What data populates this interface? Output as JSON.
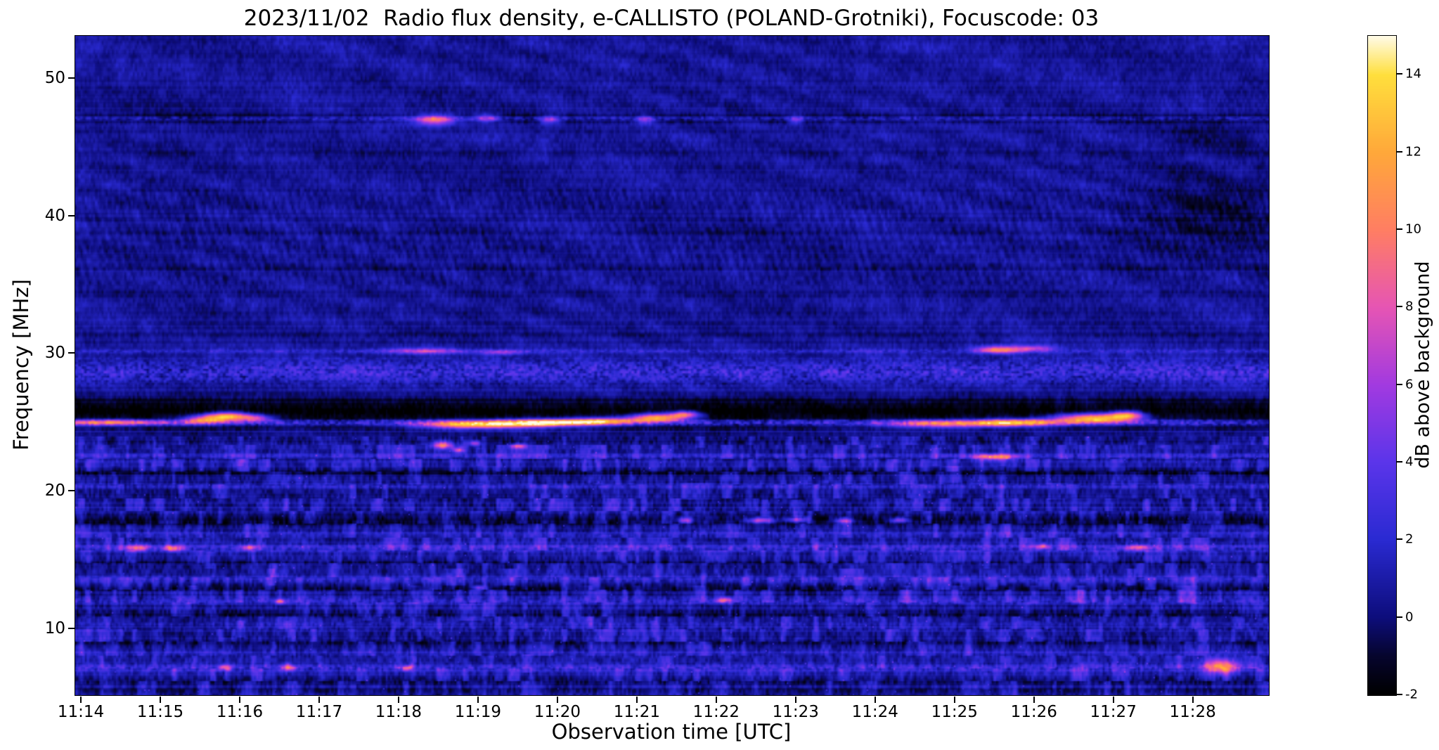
{
  "chart_data": {
    "type": "heatmap",
    "title": "2023/11/02  Radio flux density, e-CALLISTO (POLAND-Grotniki), Focuscode: 03",
    "xlabel": "Observation time [UTC]",
    "ylabel": "Frequency [MHz]",
    "x_ticks": [
      "11:14",
      "11:15",
      "11:16",
      "11:17",
      "11:18",
      "11:19",
      "11:20",
      "11:21",
      "11:22",
      "11:23",
      "11:24",
      "11:25",
      "11:26",
      "11:27",
      "11:28"
    ],
    "x_tick_values_min": [
      0,
      1,
      2,
      3,
      4,
      5,
      6,
      7,
      8,
      9,
      10,
      11,
      12,
      13,
      14
    ],
    "x_range_min": [
      -0.08,
      14.95
    ],
    "y_ticks": [
      10,
      20,
      30,
      40,
      50
    ],
    "y_range_mhz": [
      5.2,
      53.1
    ],
    "grid": false,
    "legend": "colorbar-right",
    "colorbar": {
      "label": "dB above background",
      "ticks": [
        14,
        12,
        10,
        8,
        6,
        4,
        2,
        0,
        -2
      ],
      "vmin": -2,
      "vmax": 15,
      "colormap_stops": [
        [
          -2,
          "#000000"
        ],
        [
          -1,
          "#06052e"
        ],
        [
          0,
          "#0d0d7c"
        ],
        [
          2,
          "#2a2ad2"
        ],
        [
          4,
          "#5b35ea"
        ],
        [
          6,
          "#a23ae0"
        ],
        [
          8,
          "#e655b4"
        ],
        [
          10,
          "#ff7e63"
        ],
        [
          12,
          "#ffa83a"
        ],
        [
          14,
          "#ffdf3c"
        ],
        [
          15,
          "#fffbe6"
        ]
      ]
    },
    "background_db": 0.65,
    "bands": [
      [
        47.1,
        0.5,
        -1.7,
        0
      ],
      [
        47.1,
        0.22,
        2.0,
        1
      ],
      [
        44.6,
        0.3,
        -0.8,
        0
      ],
      [
        38.8,
        0.3,
        -0.5,
        0
      ],
      [
        36.3,
        0.35,
        -0.8,
        0
      ],
      [
        34.3,
        0.3,
        -0.6,
        0
      ],
      [
        31.4,
        0.3,
        -0.5,
        0
      ],
      [
        30.2,
        0.25,
        1.6,
        1
      ],
      [
        28.7,
        1.4,
        -1.2,
        0
      ],
      [
        28.7,
        1.4,
        2.8,
        1
      ],
      [
        25.8,
        1.7,
        -2.3,
        0
      ],
      [
        25.0,
        0.3,
        3.2,
        1
      ],
      [
        23.6,
        0.4,
        -1.2,
        0
      ],
      [
        22.6,
        0.3,
        1.2,
        1
      ],
      [
        21.3,
        0.5,
        -1.4,
        0
      ],
      [
        20.4,
        0.3,
        1.1,
        1
      ],
      [
        19.5,
        0.35,
        -0.9,
        0
      ],
      [
        17.9,
        0.7,
        -1.9,
        0
      ],
      [
        16.9,
        0.3,
        0.9,
        1
      ],
      [
        15.9,
        0.45,
        1.7,
        1
      ],
      [
        14.9,
        0.4,
        -1.1,
        0
      ],
      [
        13.6,
        0.35,
        1.1,
        1
      ],
      [
        12.9,
        0.45,
        -1.3,
        0
      ],
      [
        12.1,
        0.35,
        1.4,
        1
      ],
      [
        11.1,
        0.4,
        -1.1,
        0
      ],
      [
        10.4,
        0.3,
        0.9,
        1
      ],
      [
        9.0,
        0.5,
        -1.3,
        0
      ],
      [
        8.3,
        0.3,
        0.7,
        1
      ],
      [
        7.2,
        0.45,
        1.9,
        1
      ],
      [
        6.3,
        0.4,
        -0.9,
        0
      ],
      [
        5.6,
        0.4,
        -0.7,
        0
      ]
    ],
    "blobs": [
      [
        0.35,
        25.0,
        0.85,
        0.22,
        8.5
      ],
      [
        1.55,
        25.2,
        0.28,
        0.3,
        9
      ],
      [
        1.85,
        25.45,
        0.3,
        0.3,
        13
      ],
      [
        2.2,
        25.3,
        0.2,
        0.25,
        7
      ],
      [
        5.0,
        24.85,
        0.75,
        0.3,
        13.5
      ],
      [
        5.9,
        25.0,
        0.55,
        0.26,
        12
      ],
      [
        6.6,
        25.1,
        0.45,
        0.26,
        10
      ],
      [
        7.25,
        25.35,
        0.35,
        0.3,
        13
      ],
      [
        7.6,
        25.6,
        0.18,
        0.25,
        9
      ],
      [
        10.9,
        24.9,
        0.8,
        0.28,
        9
      ],
      [
        11.8,
        25.0,
        0.5,
        0.26,
        10
      ],
      [
        12.75,
        25.3,
        0.5,
        0.35,
        14
      ],
      [
        13.15,
        25.55,
        0.2,
        0.3,
        10
      ],
      [
        4.45,
        47.0,
        0.28,
        0.35,
        9
      ],
      [
        5.1,
        47.1,
        0.15,
        0.3,
        6
      ],
      [
        5.9,
        47.0,
        0.12,
        0.3,
        6
      ],
      [
        7.1,
        47.0,
        0.12,
        0.3,
        5
      ],
      [
        9.0,
        47.0,
        0.1,
        0.3,
        4.5
      ],
      [
        4.3,
        30.2,
        0.5,
        0.22,
        5
      ],
      [
        5.3,
        30.1,
        0.3,
        0.2,
        4.5
      ],
      [
        11.55,
        30.3,
        0.3,
        0.28,
        9
      ],
      [
        12.0,
        30.4,
        0.25,
        0.2,
        5
      ],
      [
        4.55,
        23.4,
        0.12,
        0.28,
        9
      ],
      [
        4.75,
        23.0,
        0.08,
        0.2,
        7
      ],
      [
        4.95,
        23.5,
        0.07,
        0.2,
        6
      ],
      [
        5.5,
        23.3,
        0.1,
        0.2,
        6
      ],
      [
        11.5,
        22.5,
        0.28,
        0.22,
        9
      ],
      [
        7.6,
        17.9,
        0.1,
        0.2,
        6
      ],
      [
        8.55,
        17.9,
        0.18,
        0.22,
        8
      ],
      [
        9.0,
        17.95,
        0.14,
        0.2,
        7
      ],
      [
        9.6,
        17.85,
        0.12,
        0.2,
        7
      ],
      [
        10.3,
        17.9,
        0.12,
        0.2,
        6.5
      ],
      [
        0.7,
        15.9,
        0.15,
        0.25,
        7
      ],
      [
        1.15,
        15.85,
        0.12,
        0.22,
        7.5
      ],
      [
        2.1,
        15.9,
        0.1,
        0.2,
        6
      ],
      [
        12.1,
        16.0,
        0.1,
        0.2,
        6
      ],
      [
        13.3,
        15.9,
        0.18,
        0.22,
        7
      ],
      [
        2.5,
        12.0,
        0.08,
        0.18,
        6
      ],
      [
        5.0,
        13.0,
        0.08,
        0.18,
        6
      ],
      [
        8.1,
        12.1,
        0.1,
        0.2,
        7
      ],
      [
        1.8,
        7.2,
        0.08,
        0.2,
        6.5
      ],
      [
        2.6,
        7.2,
        0.1,
        0.25,
        7
      ],
      [
        4.1,
        7.15,
        0.08,
        0.2,
        6
      ],
      [
        14.35,
        7.3,
        0.22,
        0.5,
        9
      ],
      [
        14.2,
        40.5,
        0.8,
        3.2,
        -1.6
      ],
      [
        14.3,
        46.0,
        0.6,
        1.2,
        -1.0
      ]
    ]
  }
}
